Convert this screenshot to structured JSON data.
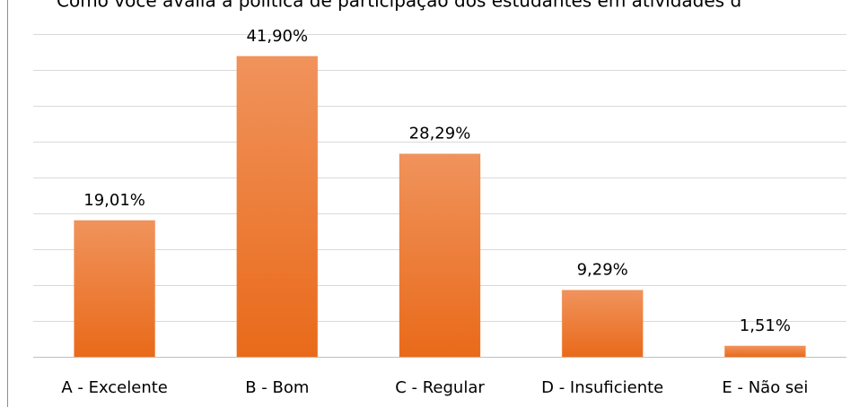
{
  "chart_data": {
    "type": "bar",
    "title": "Como você avalia a política de participação dos estudantes em atividades d",
    "categories": [
      "A - Excelente",
      "B - Bom",
      "C - Regular",
      "D - Insuficiente",
      "E - Não sei"
    ],
    "values": [
      19.01,
      41.9,
      28.29,
      9.29,
      1.51
    ],
    "value_labels": [
      "19,01%",
      "41,90%",
      "28,29%",
      "9,29%",
      "1,51%"
    ],
    "color": "#ed7d31",
    "ylim": [
      0,
      45
    ],
    "yticks": [
      0,
      5,
      10,
      15,
      20,
      25,
      30,
      35,
      40,
      45
    ],
    "grid": true
  }
}
